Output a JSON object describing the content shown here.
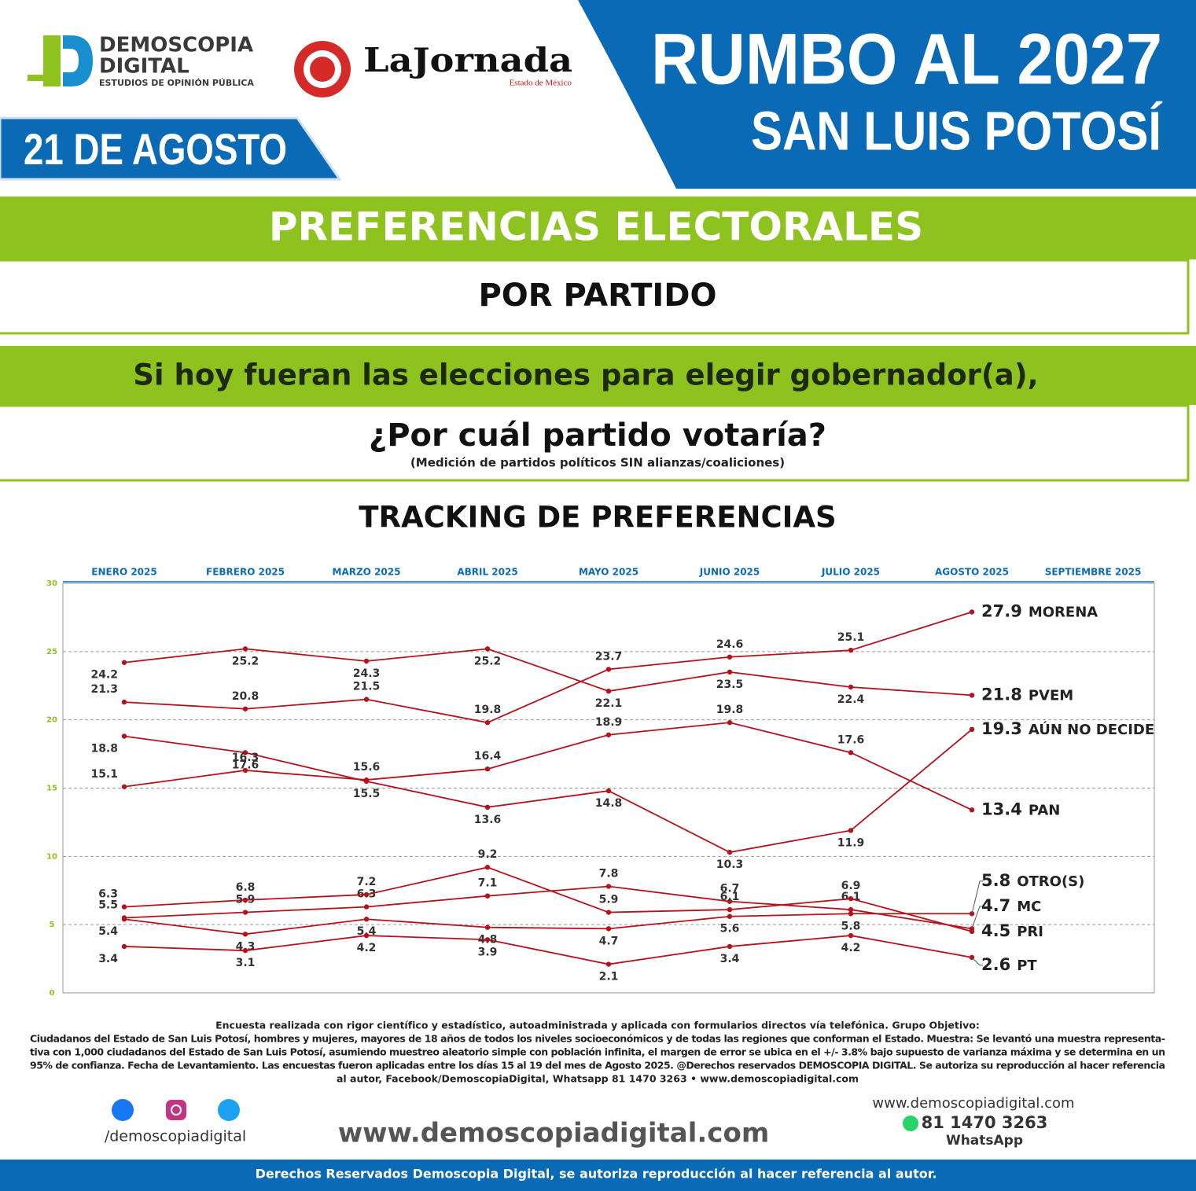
{
  "header": {
    "brand_line1": "DEMOSCOPIA",
    "brand_line2": "DIGITAL",
    "brand_tagline": "ESTUDIOS DE OPINIÓN PÚBLICA",
    "partner": "LaJornada",
    "partner_sub": "Estado de México",
    "date": "21 DE AGOSTO",
    "headline": "RUMBO AL 2027",
    "subheadline": "SAN LUIS POTOSÍ"
  },
  "section": {
    "title": "PREFERENCIAS ELECTORALES",
    "subtitle": "POR PARTIDO",
    "question_line1": "Si hoy fueran las elecciones para elegir gobernador(a),",
    "question_line2": "¿Por cuál partido votaría?",
    "note": "(Medición de partidos políticos SIN alianzas/coaliciones)"
  },
  "chart_data": {
    "type": "line",
    "title": "TRACKING DE PREFERENCIAS",
    "categories": [
      "ENERO 2025",
      "FEBRERO 2025",
      "MARZO 2025",
      "ABRIL 2025",
      "MAYO 2025",
      "JUNIO 2025",
      "JULIO 2025",
      "AGOSTO 2025",
      "SEPTIEMBRE 2025"
    ],
    "ylim": [
      0,
      30
    ],
    "yticks": [
      0,
      5,
      10,
      15,
      20,
      25,
      30
    ],
    "grid": true,
    "series": [
      {
        "name": "MORENA",
        "color": "#b5121b",
        "values": [
          21.3,
          20.8,
          21.5,
          19.8,
          23.7,
          24.6,
          25.1,
          27.9,
          null
        ]
      },
      {
        "name": "PVEM",
        "color": "#b5121b",
        "values": [
          24.2,
          25.2,
          24.3,
          25.2,
          22.1,
          23.5,
          22.4,
          21.8,
          null
        ]
      },
      {
        "name": "AÚN NO DECIDE",
        "color": "#b5121b",
        "values": [
          18.8,
          17.6,
          15.5,
          13.6,
          14.8,
          10.3,
          11.9,
          19.3,
          null
        ]
      },
      {
        "name": "PAN",
        "color": "#b5121b",
        "values": [
          15.1,
          16.3,
          15.6,
          16.4,
          18.9,
          19.8,
          17.6,
          13.4,
          null
        ]
      },
      {
        "name": "OTRO(S)",
        "color": "#b5121b",
        "values": [
          5.4,
          4.3,
          5.4,
          4.8,
          4.7,
          5.6,
          5.8,
          5.8,
          null
        ]
      },
      {
        "name": "MC",
        "color": "#b5121b",
        "values": [
          5.5,
          5.9,
          6.3,
          7.1,
          7.8,
          6.7,
          6.1,
          4.7,
          null
        ]
      },
      {
        "name": "PRI",
        "color": "#b5121b",
        "values": [
          6.3,
          6.8,
          7.2,
          9.2,
          5.9,
          6.1,
          6.9,
          4.5,
          null
        ]
      },
      {
        "name": "PT",
        "color": "#b5121b",
        "values": [
          3.4,
          3.1,
          4.2,
          3.9,
          2.1,
          3.4,
          4.2,
          2.6,
          null
        ]
      }
    ]
  },
  "footer": {
    "methodology": [
      "Encuesta realizada con rigor científico y estadístico, autoadministrada y aplicada con formularios directos vía telefónica. Grupo Objetivo:",
      "Ciudadanos del Estado de San Luis Potosí, hombres y mujeres, mayores de 18 años de todos los niveles socioeconómicos y de todas las regiones que conforman el Estado. Muestra: Se levantó una muestra representa-",
      "tiva con 1,000 ciudadanos del Estado de San Luis Potosí, asumiendo muestreo aleatorio simple con población infinita, el margen de error se ubica en el +/- 3.8% bajo supuesto de varianza máxima y se determina en un",
      "95% de confianza. Fecha de Levantamiento. Las encuestas fueron aplicadas entre los días 15 al 19 del mes de Agosto 2025. @Derechos reservados DEMOSCOPIA DIGITAL. Se autoriza su reproducción al hacer referencia",
      "al autor, Facebook/DemoscopiaDigital, Whatsapp 81 1470 3263 • www.demoscopiadigital.com"
    ],
    "social_handle": "/demoscopiadigital",
    "website_big": "www.demoscopiadigital.com",
    "website": "www.demoscopiadigital.com",
    "phone": "81 1470 3263",
    "phone_label": "WhatsApp",
    "rights": "Derechos Reservados Demoscopia Digital, se autoriza reproducción al hacer referencia al autor."
  }
}
